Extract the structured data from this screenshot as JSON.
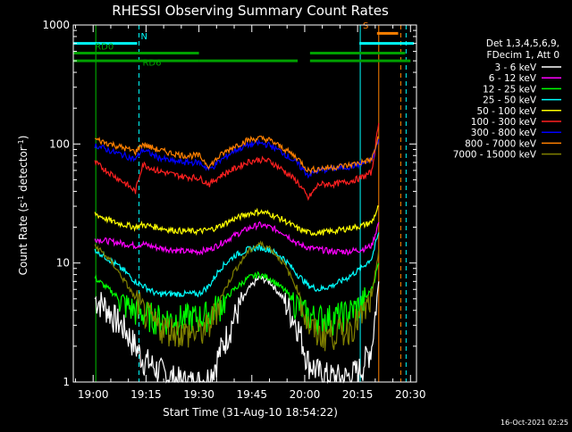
{
  "chart_data": {
    "type": "line",
    "title": "RHESSI Observing Summary Count Rates",
    "xlabel": "Start Time (31-Aug-10 18:54:22)",
    "ylabel": "Count Rate (s⁻¹ detector⁻¹)",
    "ylabel_parts": [
      "Count Rate (s",
      "-1",
      " detector",
      "-1",
      ")"
    ],
    "y_scale": "log",
    "ylim": [
      1,
      1000
    ],
    "xlim": [
      "18:54:22",
      "20:31:42"
    ],
    "x_tick_labels": [
      "19:00",
      "19:15",
      "19:30",
      "19:45",
      "20:00",
      "20:15",
      "20:30"
    ],
    "y_tick_labels": [
      "1",
      "10",
      "100",
      "1000"
    ],
    "legend_header": [
      "Det 1,3,4,5,6,9,",
      "FDecim 1, Att 0"
    ],
    "legend_position": "right",
    "timestamp": "16-Oct-2021 02:25",
    "flags": {
      "N": {
        "label": "N",
        "color": "#00ffff",
        "segments": [
          [
            "18:54:22",
            "19:12:30"
          ],
          [
            "20:15:30",
            "20:31:00"
          ]
        ],
        "level": 700
      },
      "S": {
        "label": "S",
        "color": "#ff8000",
        "segments": [
          [
            "20:20:30",
            "20:26:30"
          ]
        ],
        "level": 850
      },
      "RD0": {
        "label": "RD0",
        "color": "#00a000",
        "segments": [
          [
            "18:54:22",
            "19:12:30"
          ],
          [
            "19:12:30",
            "19:30:00"
          ],
          [
            "20:01:30",
            "20:28:30"
          ]
        ],
        "level": 580
      },
      "RD6": {
        "label": "RD6",
        "color": "#00a000",
        "segments": [
          [
            "18:54:22",
            "19:30:00"
          ],
          [
            "19:30:00",
            "19:58:00"
          ],
          [
            "20:01:30",
            "20:29:00"
          ],
          [
            "20:29:00",
            "20:30:00"
          ]
        ],
        "level": 500
      }
    },
    "vertical_lines": [
      {
        "time": "18:54:22",
        "color": "#00ffff",
        "style": "solid"
      },
      {
        "time": "19:00:45",
        "color": "#00c000",
        "style": "solid"
      },
      {
        "time": "19:13:00",
        "color": "#00ffff",
        "style": "dashed"
      },
      {
        "time": "20:15:45",
        "color": "#00ffff",
        "style": "solid"
      },
      {
        "time": "20:21:00",
        "color": "#ff8000",
        "style": "solid"
      },
      {
        "time": "20:27:15",
        "color": "#ff8000",
        "style": "dashed"
      },
      {
        "time": "20:28:45",
        "color": "#00ffff",
        "style": "dashed"
      }
    ],
    "series": [
      {
        "name": "3 - 6 keV",
        "color": "#ffffff",
        "x": [
          "19:00:30",
          "19:03",
          "19:06",
          "19:09",
          "19:12",
          "19:14",
          "19:18",
          "19:22",
          "19:26",
          "19:30",
          "19:33",
          "19:36",
          "19:40",
          "19:44",
          "19:47",
          "19:50",
          "19:54",
          "19:58",
          "20:01",
          "20:04",
          "20:08",
          "20:12",
          "20:16",
          "20:19",
          "20:21"
        ],
        "y": [
          5,
          4.5,
          3.5,
          2.8,
          2,
          1.6,
          1.3,
          1.1,
          1,
          1,
          1.1,
          1.8,
          3.5,
          6,
          7.5,
          7,
          5,
          3,
          1.5,
          1.2,
          1.1,
          1.1,
          1.3,
          2,
          7
        ]
      },
      {
        "name": "6 - 12 keV",
        "color": "#ff00ff",
        "x": [
          "19:00:30",
          "19:03",
          "19:06",
          "19:09",
          "19:12",
          "19:14",
          "19:18",
          "19:22",
          "19:26",
          "19:30",
          "19:33",
          "19:36",
          "19:40",
          "19:44",
          "19:47",
          "19:50",
          "19:54",
          "19:58",
          "20:01",
          "20:04",
          "20:08",
          "20:12",
          "20:16",
          "20:19",
          "20:21"
        ],
        "y": [
          16,
          15.5,
          15,
          14.5,
          14,
          14.5,
          13.5,
          13,
          12.5,
          12.5,
          13,
          14.5,
          17,
          19.5,
          21,
          20,
          18,
          14.5,
          13.5,
          13,
          12.5,
          12.5,
          13,
          14,
          22
        ]
      },
      {
        "name": "12 - 25 keV",
        "color": "#00ff00",
        "x": [
          "19:00:30",
          "19:03",
          "19:06",
          "19:09",
          "19:12",
          "19:14",
          "19:18",
          "19:22",
          "19:26",
          "19:30",
          "19:33",
          "19:36",
          "19:40",
          "19:44",
          "19:47",
          "19:50",
          "19:54",
          "19:58",
          "20:01",
          "20:04",
          "20:08",
          "20:12",
          "20:16",
          "20:19",
          "20:21"
        ],
        "y": [
          7.5,
          6.5,
          5.5,
          4.5,
          4,
          3.8,
          3.5,
          3.4,
          3.5,
          3.5,
          3.8,
          4.5,
          6,
          7.5,
          8,
          7.5,
          6,
          4.5,
          3.6,
          3.5,
          3.5,
          3.8,
          4.5,
          6,
          10
        ]
      },
      {
        "name": "25 - 50 keV",
        "color": "#00ffff",
        "x": [
          "19:00:30",
          "19:03",
          "19:06",
          "19:09",
          "19:12",
          "19:14",
          "19:18",
          "19:22",
          "19:26",
          "19:30",
          "19:33",
          "19:36",
          "19:40",
          "19:44",
          "19:47",
          "19:50",
          "19:54",
          "19:58",
          "20:01",
          "20:04",
          "20:08",
          "20:12",
          "20:16",
          "20:19",
          "20:21"
        ],
        "y": [
          13,
          11.5,
          10,
          8.5,
          7,
          6.5,
          5.5,
          5.5,
          5.5,
          5.5,
          6.5,
          9,
          11.5,
          13,
          13.5,
          13,
          11,
          8,
          6.5,
          6,
          6.5,
          7.5,
          9,
          11,
          18
        ]
      },
      {
        "name": "50 - 100 keV",
        "color": "#ffff00",
        "x": [
          "19:00:30",
          "19:03",
          "19:06",
          "19:09",
          "19:12",
          "19:14",
          "19:18",
          "19:22",
          "19:26",
          "19:30",
          "19:33",
          "19:36",
          "19:40",
          "19:44",
          "19:47",
          "19:50",
          "19:54",
          "19:58",
          "20:01",
          "20:04",
          "20:08",
          "20:12",
          "20:16",
          "20:19",
          "20:21"
        ],
        "y": [
          26,
          24,
          22,
          21,
          20,
          21,
          20,
          19,
          18.5,
          18.5,
          19,
          20.5,
          23.5,
          26,
          27,
          26,
          23,
          19.5,
          18,
          18,
          18.5,
          19.5,
          20.5,
          22,
          30
        ]
      },
      {
        "name": "100 - 300 keV",
        "color": "#ff2020",
        "x": [
          "19:00:30",
          "19:03",
          "19:06",
          "19:09",
          "19:12",
          "19:14",
          "19:18",
          "19:22",
          "19:26",
          "19:30",
          "19:33",
          "19:36",
          "19:40",
          "19:44",
          "19:47",
          "19:50",
          "19:54",
          "19:58",
          "20:01",
          "20:04",
          "20:08",
          "20:12",
          "20:16",
          "20:19",
          "20:21"
        ],
        "y": [
          70,
          62,
          54,
          47,
          40,
          68,
          60,
          56,
          53,
          52,
          46,
          54,
          62,
          71,
          74,
          72,
          60,
          48,
          35,
          46,
          46,
          48,
          52,
          58,
          150
        ]
      },
      {
        "name": "300 - 800 keV",
        "color": "#0000ff",
        "x": [
          "19:00:30",
          "19:03",
          "19:06",
          "19:09",
          "19:12",
          "19:14",
          "19:18",
          "19:22",
          "19:26",
          "19:30",
          "19:33",
          "19:36",
          "19:40",
          "19:44",
          "19:47",
          "19:50",
          "19:54",
          "19:58",
          "20:01",
          "20:04",
          "20:08",
          "20:12",
          "20:16",
          "20:19",
          "20:21"
        ],
        "y": [
          98,
          92,
          85,
          80,
          74,
          90,
          78,
          72,
          70,
          70,
          61,
          72,
          88,
          98,
          102,
          98,
          84,
          68,
          55,
          60,
          62,
          64,
          68,
          73,
          110
        ]
      },
      {
        "name": "800 - 7000 keV",
        "color": "#ff8000",
        "x": [
          "19:00:30",
          "19:03",
          "19:06",
          "19:09",
          "19:12",
          "19:14",
          "19:18",
          "19:22",
          "19:26",
          "19:30",
          "19:33",
          "19:36",
          "19:40",
          "19:44",
          "19:47",
          "19:50",
          "19:54",
          "19:58",
          "20:01",
          "20:04",
          "20:08",
          "20:12",
          "20:16",
          "20:19",
          "20:21"
        ],
        "y": [
          110,
          104,
          98,
          92,
          86,
          100,
          90,
          84,
          80,
          80,
          65,
          80,
          96,
          108,
          112,
          108,
          92,
          76,
          60,
          62,
          64,
          66,
          70,
          74,
          115
        ]
      },
      {
        "name": "7000 - 15000 keV",
        "color": "#808000",
        "x": [
          "19:00:30",
          "19:03",
          "19:06",
          "19:09",
          "19:12",
          "19:14",
          "19:18",
          "19:22",
          "19:26",
          "19:30",
          "19:33",
          "19:36",
          "19:40",
          "19:44",
          "19:47",
          "19:50",
          "19:54",
          "19:58",
          "20:01",
          "20:04",
          "20:08",
          "20:12",
          "20:16",
          "20:19",
          "20:21"
        ],
        "y": [
          14,
          12,
          9.5,
          7,
          5,
          4,
          3,
          2.8,
          2.6,
          2.6,
          3,
          5,
          8.5,
          12.5,
          14.5,
          13.5,
          10,
          6,
          3,
          2.5,
          2.6,
          2.8,
          3.5,
          5,
          13
        ]
      }
    ]
  }
}
